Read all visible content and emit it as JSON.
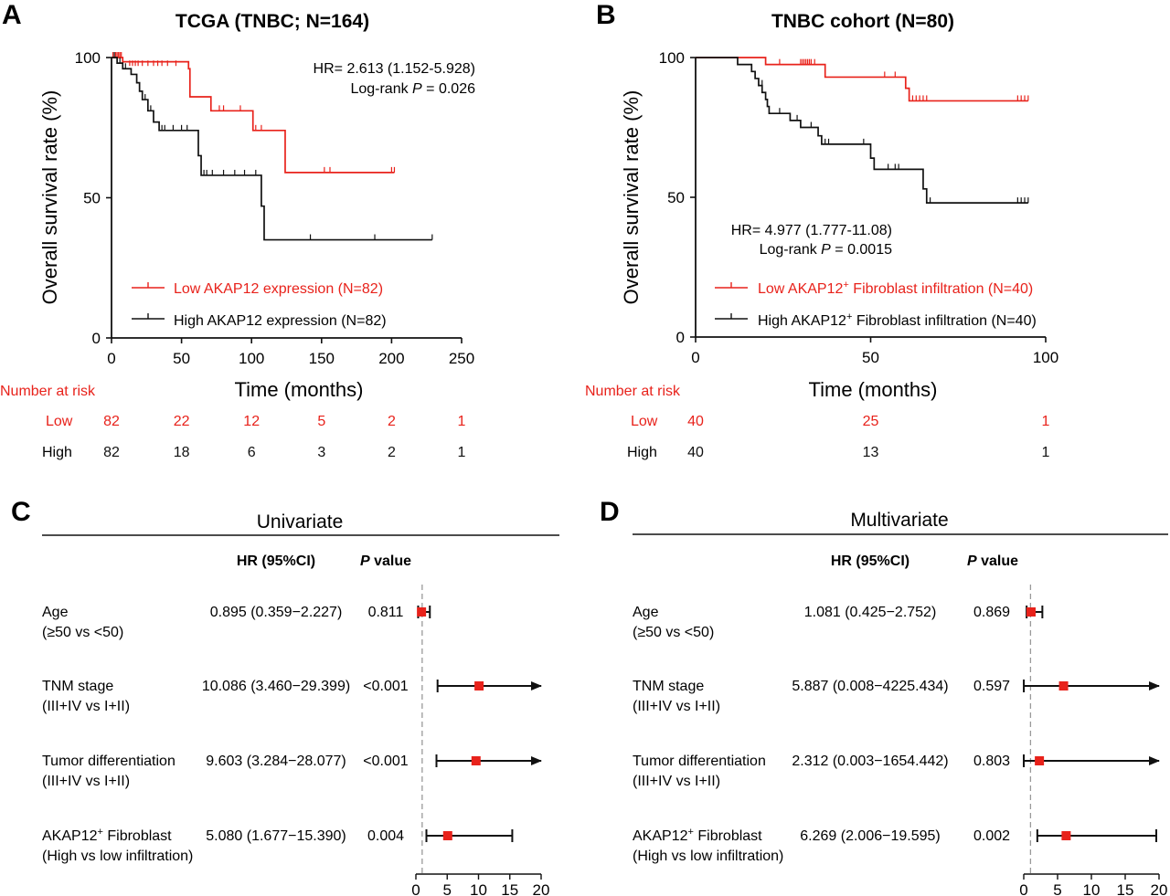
{
  "colors": {
    "low": "#e8221b",
    "high": "#111111",
    "marker": "#e8221b",
    "refline": "#999999"
  },
  "panels": {
    "A": {
      "letter": "A",
      "title": "TCGA (TNBC; N=164)",
      "hr_text": "HR= 2.613 (1.152-5.928)",
      "logrank_prefix": "Log-rank ",
      "p_letter": "P",
      "p_rest": " = 0.026"
    },
    "B": {
      "letter": "B",
      "title": "TNBC cohort (N=80)",
      "hr_text": "HR= 4.977 (1.777-11.08)",
      "logrank_prefix": "Log-rank ",
      "p_letter": "P",
      "p_rest": " = 0.0015"
    },
    "C": {
      "letter": "C",
      "title": "Univariate",
      "hr_header": "HR (95%CI)",
      "p_header_letter": "P",
      "p_header_rest": " value"
    },
    "D": {
      "letter": "D",
      "title": "Multivariate",
      "hr_header": "HR (95%CI)",
      "p_header_letter": "P",
      "p_header_rest": " value"
    }
  },
  "chart_data": [
    {
      "type": "line",
      "subtype": "kaplan-meier",
      "panel": "A",
      "title": "TCGA (TNBC; N=164)",
      "xlabel": "Time (months)",
      "ylabel": "Overall survival rate (%)",
      "xlim": [
        0,
        250
      ],
      "ylim": [
        0,
        100
      ],
      "xticks": [
        0,
        50,
        100,
        150,
        200,
        250
      ],
      "yticks": [
        0,
        50,
        100
      ],
      "legend_position": "bottom-left",
      "series": [
        {
          "name": "Low AKAP12 expression (N=82)",
          "color": "#e8221b",
          "steps": [
            [
              0,
              100
            ],
            [
              8,
              98.5
            ],
            [
              55,
              96
            ],
            [
              56,
              86
            ],
            [
              70,
              86
            ],
            [
              71,
              81
            ],
            [
              100,
              81
            ],
            [
              101,
              74
            ],
            [
              123,
              74
            ],
            [
              124,
              59
            ],
            [
              202,
              59
            ]
          ],
          "censors": [
            [
              1,
              100
            ],
            [
              2,
              100
            ],
            [
              3,
              100
            ],
            [
              4,
              100
            ],
            [
              5,
              100
            ],
            [
              6,
              100
            ],
            [
              7,
              100
            ],
            [
              13,
              97
            ],
            [
              15,
              97
            ],
            [
              17,
              97
            ],
            [
              19,
              97
            ],
            [
              22,
              97
            ],
            [
              26,
              97
            ],
            [
              30,
              97
            ],
            [
              33,
              97
            ],
            [
              36,
              97
            ],
            [
              40,
              97
            ],
            [
              46,
              97
            ],
            [
              77,
              81
            ],
            [
              80,
              81
            ],
            [
              92,
              81
            ],
            [
              103,
              74
            ],
            [
              107,
              74
            ],
            [
              152,
              59
            ],
            [
              156,
              59
            ],
            [
              200,
              59
            ],
            [
              202,
              59
            ]
          ]
        },
        {
          "name": "High AKAP12 expression (N=82)",
          "color": "#111111",
          "steps": [
            [
              0,
              100
            ],
            [
              4,
              98
            ],
            [
              8,
              96
            ],
            [
              14,
              94
            ],
            [
              18,
              91
            ],
            [
              20,
              88
            ],
            [
              22,
              85
            ],
            [
              26,
              81
            ],
            [
              30,
              77
            ],
            [
              34,
              74
            ],
            [
              60,
              74
            ],
            [
              62,
              65
            ],
            [
              64,
              58
            ],
            [
              104,
              58
            ],
            [
              107,
              47
            ],
            [
              109,
              35
            ],
            [
              229,
              35
            ]
          ],
          "censors": [
            [
              2,
              100
            ],
            [
              6,
              98
            ],
            [
              10,
              96
            ],
            [
              24,
              85
            ],
            [
              28,
              81
            ],
            [
              36,
              74
            ],
            [
              38,
              74
            ],
            [
              44,
              74
            ],
            [
              50,
              74
            ],
            [
              54,
              74
            ],
            [
              66,
              58
            ],
            [
              68,
              58
            ],
            [
              72,
              58
            ],
            [
              80,
              58
            ],
            [
              88,
              58
            ],
            [
              95,
              58
            ],
            [
              103,
              58
            ],
            [
              142,
              35
            ],
            [
              188,
              35
            ],
            [
              229,
              35
            ]
          ]
        }
      ],
      "annotation": "HR= 2.613 (1.152-5.928)  Log-rank P = 0.026",
      "risk_table": {
        "header": "Number at risk",
        "times": [
          0,
          50,
          100,
          150,
          200,
          250
        ],
        "rows": [
          {
            "label": "Low",
            "values": [
              82,
              22,
              12,
              5,
              2,
              1
            ],
            "color": "#e8221b"
          },
          {
            "label": "High",
            "values": [
              82,
              18,
              6,
              3,
              2,
              1
            ],
            "color": "#111111"
          }
        ]
      }
    },
    {
      "type": "line",
      "subtype": "kaplan-meier",
      "panel": "B",
      "title": "TNBC cohort (N=80)",
      "xlabel": "Time (months)",
      "ylabel": "Overall survival rate (%)",
      "xlim": [
        0,
        100
      ],
      "ylim": [
        0,
        100
      ],
      "xticks": [
        0,
        50,
        100
      ],
      "yticks": [
        0,
        50,
        100
      ],
      "legend_position": "bottom",
      "series": [
        {
          "name_main": "Low AKAP12",
          "name_sup": "+",
          "name_rest": " Fibroblast infiltration (N=40)",
          "color": "#e8221b",
          "steps": [
            [
              0,
              100
            ],
            [
              19,
              100
            ],
            [
              20,
              97.5
            ],
            [
              36,
              97.5
            ],
            [
              37,
              93
            ],
            [
              59,
              93
            ],
            [
              60,
              89
            ],
            [
              61,
              84.5
            ],
            [
              95,
              84.5
            ]
          ],
          "censors": [
            [
              24,
              97.5
            ],
            [
              30,
              97.5
            ],
            [
              30.5,
              97.5
            ],
            [
              31,
              97.5
            ],
            [
              31.5,
              97.5
            ],
            [
              32,
              97.5
            ],
            [
              32.5,
              97.5
            ],
            [
              33,
              97.5
            ],
            [
              34,
              97.5
            ],
            [
              54,
              93
            ],
            [
              57,
              93
            ],
            [
              62,
              84.5
            ],
            [
              63,
              84.5
            ],
            [
              64,
              84.5
            ],
            [
              65,
              84.5
            ],
            [
              66,
              84.5
            ],
            [
              92,
              84.5
            ],
            [
              93,
              84.5
            ],
            [
              94,
              84.5
            ],
            [
              95,
              84.5
            ]
          ]
        },
        {
          "name_main": "High AKAP12",
          "name_sup": "+",
          "name_rest": " Fibroblast infiltration (N=40)",
          "color": "#111111",
          "steps": [
            [
              0,
              100
            ],
            [
              11,
              100
            ],
            [
              12,
              97.5
            ],
            [
              16,
              95
            ],
            [
              17,
              92.5
            ],
            [
              18,
              90
            ],
            [
              19,
              87.5
            ],
            [
              20,
              85
            ],
            [
              20.5,
              82.5
            ],
            [
              21,
              80
            ],
            [
              26,
              80
            ],
            [
              27,
              77.5
            ],
            [
              30,
              75
            ],
            [
              35,
              72
            ],
            [
              36,
              69
            ],
            [
              49,
              69
            ],
            [
              50,
              64
            ],
            [
              51,
              60
            ],
            [
              64,
              60
            ],
            [
              65,
              53
            ],
            [
              66,
              48
            ],
            [
              95,
              48
            ]
          ],
          "censors": [
            [
              19,
              90
            ],
            [
              24,
              80
            ],
            [
              29,
              77.5
            ],
            [
              33,
              75
            ],
            [
              37,
              69
            ],
            [
              38,
              69
            ],
            [
              48,
              69
            ],
            [
              55,
              60
            ],
            [
              57,
              60
            ],
            [
              58,
              60
            ],
            [
              67,
              48
            ],
            [
              92,
              48
            ],
            [
              93,
              48
            ],
            [
              94,
              48
            ],
            [
              95,
              48
            ]
          ]
        }
      ],
      "annotation": "HR= 4.977 (1.777-11.08)  Log-rank P = 0.0015",
      "risk_table": {
        "header": "Number at risk",
        "times": [
          0,
          50,
          100
        ],
        "rows": [
          {
            "label": "Low",
            "values": [
              40,
              25,
              1
            ],
            "color": "#e8221b"
          },
          {
            "label": "High",
            "values": [
              40,
              13,
              1
            ],
            "color": "#111111"
          }
        ]
      }
    },
    {
      "type": "scatter",
      "subtype": "forest",
      "panel": "C",
      "title": "Univariate",
      "xlim": [
        0,
        20
      ],
      "xticks": [
        0,
        5,
        10,
        15,
        20
      ],
      "reference_line": 1,
      "rows": [
        {
          "var": "Age",
          "sub": "(≥50 vs <50)",
          "hr_ci": "0.895 (0.359−2.227)",
          "p": "0.811",
          "hr": 0.895,
          "lo": 0.359,
          "hi": 2.227,
          "arrow": false
        },
        {
          "var": "TNM stage",
          "sub": "(III+IV vs I+II)",
          "hr_ci": "10.086 (3.460−29.399)",
          "p": "<0.001",
          "hr": 10.086,
          "lo": 3.46,
          "hi": 29.399,
          "arrow": true
        },
        {
          "var": "Tumor differentiation",
          "sub": "(III+IV vs I+II)",
          "hr_ci": "9.603 (3.284−28.077)",
          "p": "<0.001",
          "hr": 9.603,
          "lo": 3.284,
          "hi": 28.077,
          "arrow": true
        },
        {
          "var_main": "AKAP12",
          "var_sup": "+",
          "var_rest": " Fibroblast",
          "sub": "(High vs low infiltration)",
          "hr_ci": "5.080 (1.677−15.390)",
          "p": "0.004",
          "hr": 5.08,
          "lo": 1.677,
          "hi": 15.39,
          "arrow": false
        }
      ]
    },
    {
      "type": "scatter",
      "subtype": "forest",
      "panel": "D",
      "title": "Multivariate",
      "xlim": [
        0,
        20
      ],
      "xticks": [
        0,
        5,
        10,
        15,
        20
      ],
      "reference_line": 1,
      "rows": [
        {
          "var": "Age",
          "sub": "(≥50 vs <50)",
          "hr_ci": "1.081 (0.425−2.752)",
          "p": "0.869",
          "hr": 1.081,
          "lo": 0.425,
          "hi": 2.752,
          "arrow": false
        },
        {
          "var": "TNM stage",
          "sub": "(III+IV vs I+II)",
          "hr_ci": "5.887 (0.008−4225.434)",
          "p": "0.597",
          "hr": 5.887,
          "lo": 0.008,
          "hi": 4225.434,
          "arrow": true
        },
        {
          "var": "Tumor differentiation",
          "sub": "(III+IV vs I+II)",
          "hr_ci": "2.312 (0.003−1654.442)",
          "p": "0.803",
          "hr": 2.312,
          "lo": 0.003,
          "hi": 1654.442,
          "arrow": true
        },
        {
          "var_main": "AKAP12",
          "var_sup": "+",
          "var_rest": " Fibroblast",
          "sub": "(High vs low infiltration)",
          "hr_ci": "6.269 (2.006−19.595)",
          "p": "0.002",
          "hr": 6.269,
          "lo": 2.006,
          "hi": 19.595,
          "arrow": false
        }
      ]
    }
  ]
}
